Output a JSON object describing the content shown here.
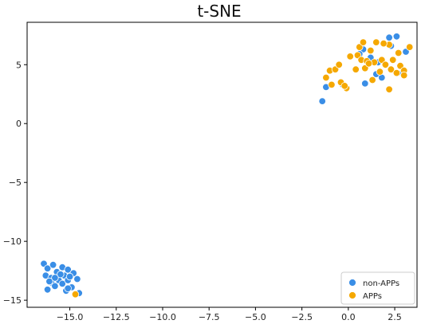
{
  "chart_data": {
    "type": "scatter",
    "title": "t-SNE",
    "xlabel": "",
    "ylabel": "",
    "xlim": [
      -17.3,
      3.7
    ],
    "ylim": [
      -15.6,
      8.6
    ],
    "xticks": [
      -15.0,
      -12.5,
      -10.0,
      -7.5,
      -5.0,
      -2.5,
      0.0,
      2.5
    ],
    "yticks": [
      -15,
      -10,
      -5,
      0,
      5
    ],
    "xtick_labels": [
      "−15.0",
      "−12.5",
      "−10.0",
      "−7.5",
      "−5.0",
      "−2.5",
      "0.0",
      "2.5"
    ],
    "ytick_labels": [
      "−15",
      "−10",
      "−5",
      "0",
      "5"
    ],
    "grid": false,
    "legend_position": "bottom-right",
    "series": [
      {
        "name": "non-APPs",
        "color": "#3a8ee6",
        "points": [
          [
            -16.4,
            -11.9
          ],
          [
            -16.2,
            -12.3
          ],
          [
            -15.9,
            -12.0
          ],
          [
            -16.3,
            -12.9
          ],
          [
            -16.0,
            -13.1
          ],
          [
            -15.7,
            -12.6
          ],
          [
            -15.4,
            -12.2
          ],
          [
            -15.1,
            -12.4
          ],
          [
            -15.3,
            -12.9
          ],
          [
            -15.6,
            -13.3
          ],
          [
            -16.0,
            -13.5
          ],
          [
            -15.8,
            -13.8
          ],
          [
            -15.4,
            -13.6
          ],
          [
            -15.1,
            -13.3
          ],
          [
            -14.8,
            -12.7
          ],
          [
            -14.6,
            -13.2
          ],
          [
            -14.9,
            -13.9
          ],
          [
            -15.2,
            -14.2
          ],
          [
            -16.2,
            -14.1
          ],
          [
            -15.0,
            -13.0
          ],
          [
            -15.5,
            -12.8
          ],
          [
            -14.5,
            -14.4
          ],
          [
            -15.8,
            -13.1
          ],
          [
            -15.1,
            -14.0
          ],
          [
            -16.1,
            -13.4
          ],
          [
            -1.4,
            1.9
          ],
          [
            -1.2,
            3.1
          ],
          [
            -0.3,
            3.3
          ],
          [
            0.8,
            6.3
          ],
          [
            1.2,
            5.6
          ],
          [
            1.5,
            4.2
          ],
          [
            1.8,
            3.9
          ],
          [
            2.2,
            7.3
          ],
          [
            2.3,
            6.6
          ],
          [
            2.6,
            7.4
          ],
          [
            2.9,
            4.3
          ],
          [
            3.1,
            6.1
          ],
          [
            0.9,
            3.4
          ],
          [
            1.6,
            5.2
          ],
          [
            0.6,
            5.9
          ]
        ]
      },
      {
        "name": "APPs",
        "color": "#f5a800",
        "points": [
          [
            -14.7,
            -14.5
          ],
          [
            -1.2,
            3.9
          ],
          [
            -1.0,
            4.5
          ],
          [
            -0.7,
            4.6
          ],
          [
            -0.9,
            3.3
          ],
          [
            -0.4,
            3.5
          ],
          [
            -0.5,
            5.0
          ],
          [
            -0.1,
            3.0
          ],
          [
            0.1,
            5.7
          ],
          [
            0.5,
            5.8
          ],
          [
            0.6,
            6.5
          ],
          [
            0.8,
            6.9
          ],
          [
            0.7,
            5.4
          ],
          [
            0.4,
            4.6
          ],
          [
            1.0,
            5.3
          ],
          [
            1.2,
            6.2
          ],
          [
            1.4,
            5.2
          ],
          [
            1.5,
            6.9
          ],
          [
            1.3,
            3.7
          ],
          [
            1.7,
            4.4
          ],
          [
            1.8,
            5.4
          ],
          [
            2.0,
            5.0
          ],
          [
            2.2,
            6.7
          ],
          [
            2.3,
            4.6
          ],
          [
            2.4,
            5.4
          ],
          [
            2.6,
            4.3
          ],
          [
            2.8,
            4.9
          ],
          [
            3.0,
            4.5
          ],
          [
            3.3,
            6.5
          ],
          [
            2.2,
            2.9
          ],
          [
            -0.2,
            3.2
          ],
          [
            0.9,
            4.7
          ],
          [
            1.9,
            6.8
          ],
          [
            2.7,
            6.0
          ],
          [
            1.1,
            5.1
          ],
          [
            3.0,
            4.1
          ]
        ]
      }
    ]
  }
}
